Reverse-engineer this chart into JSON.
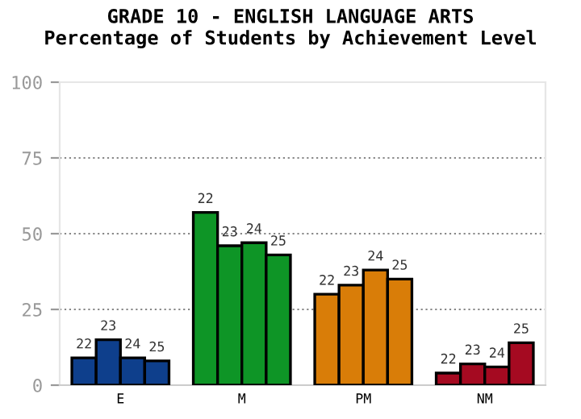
{
  "chart_data": {
    "type": "bar",
    "title": "GRADE 10 - ENGLISH LANGUAGE ARTS",
    "subtitle": "Percentage of Students by Achievement Level",
    "categories": [
      "E",
      "M",
      "PM",
      "NM"
    ],
    "series": [
      {
        "name": "22",
        "colors": [
          "#0e3f8c",
          "#0e9526",
          "#d97d08",
          "#a50a21"
        ],
        "values": [
          9,
          57,
          30,
          4
        ]
      },
      {
        "name": "23",
        "colors": [
          "#0e3f8c",
          "#0e9526",
          "#d97d08",
          "#a50a21"
        ],
        "values": [
          15,
          46,
          33,
          7
        ]
      },
      {
        "name": "24",
        "colors": [
          "#0e3f8c",
          "#0e9526",
          "#d97d08",
          "#a50a21"
        ],
        "values": [
          9,
          47,
          38,
          6
        ]
      },
      {
        "name": "25",
        "colors": [
          "#0e3f8c",
          "#0e9526",
          "#d97d08",
          "#a50a21"
        ],
        "values": [
          8,
          43,
          35,
          14
        ]
      }
    ],
    "ylim": [
      0,
      100
    ],
    "yticks": [
      0,
      25,
      50,
      75,
      100
    ],
    "grid": "y",
    "legend": false
  }
}
